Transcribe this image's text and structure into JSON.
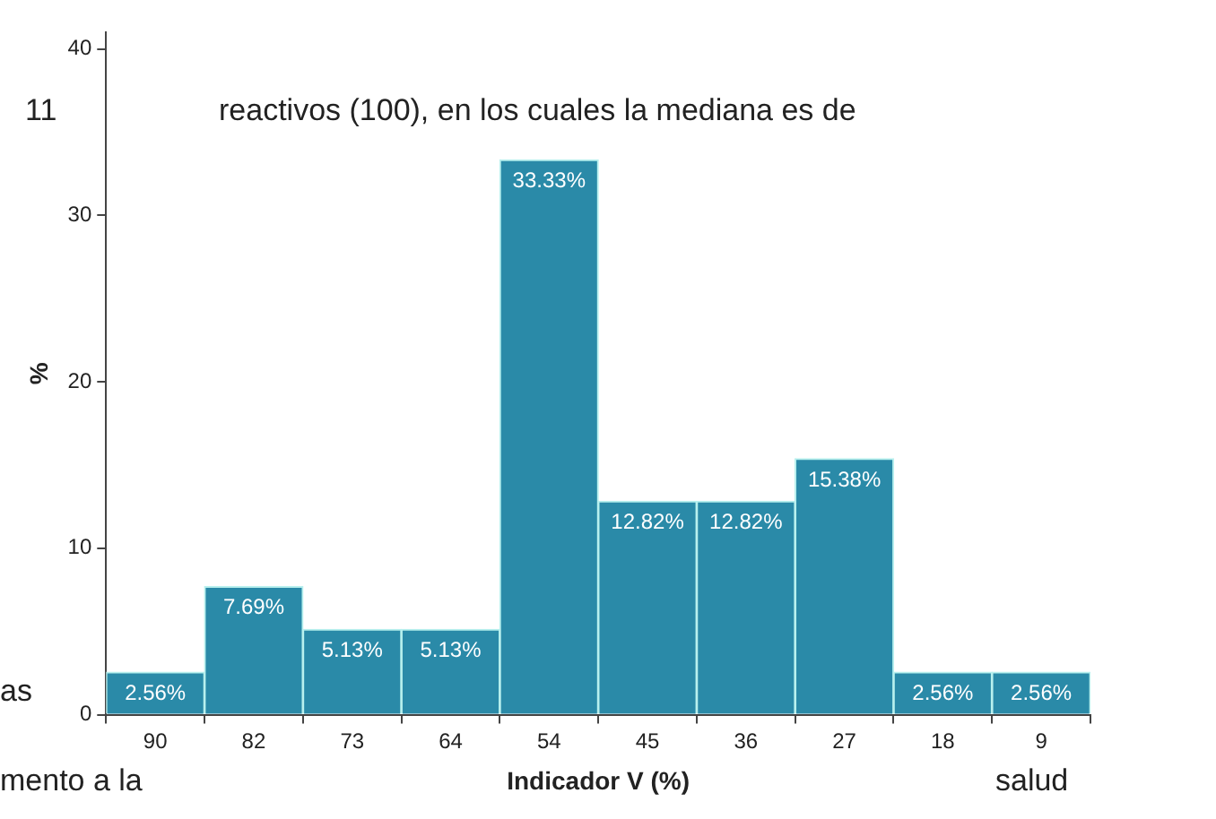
{
  "chart_data": {
    "type": "bar",
    "xlabel": "Indicador V (%)",
    "ylabel": "%",
    "categories": [
      "90",
      "82",
      "73",
      "64",
      "54",
      "45",
      "36",
      "27",
      "18",
      "9"
    ],
    "values": [
      2.56,
      7.69,
      5.13,
      5.13,
      33.33,
      12.82,
      12.82,
      15.38,
      2.56,
      2.56
    ],
    "value_labels": [
      "2.56%",
      "7.69%",
      "5.13%",
      "5.13%",
      "33.33%",
      "12.82%",
      "12.82%",
      "15.38%",
      "2.56%",
      "2.56%"
    ],
    "color": "#2a8aa8",
    "ylim": [
      0,
      41
    ],
    "yticks": [
      0,
      10,
      20,
      30,
      40
    ],
    "grid": false,
    "legend": false,
    "annotations": [
      "11",
      "reactivos (100), en los cuales la mediana es de",
      "as",
      "mento a la",
      "salud"
    ]
  }
}
